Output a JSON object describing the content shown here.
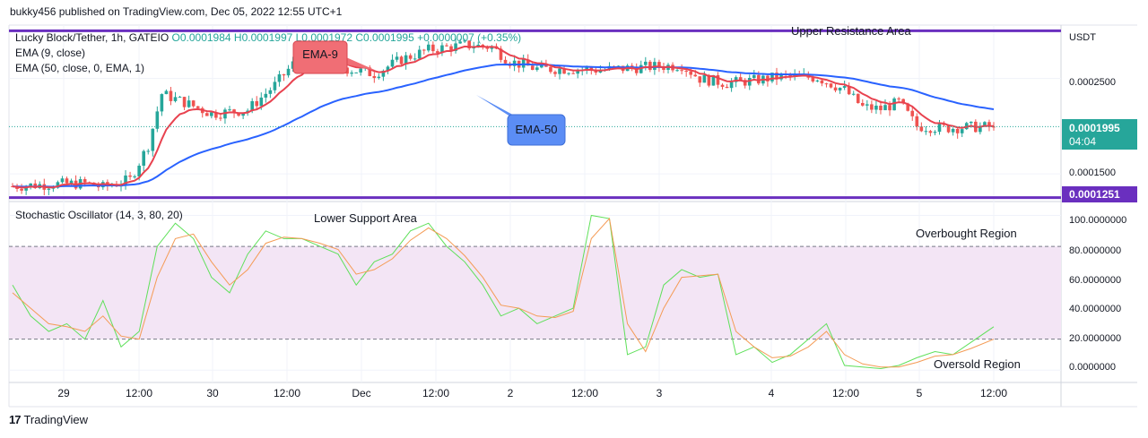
{
  "header": "bukky456 published on TradingView.com, Dec 05, 2022 12:55 UTC+1",
  "footer": {
    "logo": "17",
    "brand": "TradingView"
  },
  "symbol_line": {
    "prefix": "Lucky Block/Tether, 1h, GATEIO ",
    "ohlc": "O0.0001984  H0.0001997  L0.0001972  C0.0001995  +0.0000007 (+0.35%)"
  },
  "legend": {
    "ema9": "EMA (9, close)",
    "ema50": "EMA (50, close, 0, EMA, 1)",
    "stoch": "Stochastic Oscillator (14, 3, 80, 20)"
  },
  "annotations": {
    "upper_resistance": "Upper Resistance Area",
    "lower_support": "Lower Support Area",
    "ema9_callout": "EMA-9",
    "ema50_callout": "EMA-50",
    "overbought": "Overbought Region",
    "oversold": "Oversold Region"
  },
  "price_axis": {
    "currency": "USDT",
    "ticks": [
      "0.0002500",
      "0.0001500"
    ],
    "current_price": "0.0001995",
    "countdown": "04:04",
    "support_price": "0.0001251"
  },
  "stoch_axis": {
    "ticks": [
      "100.0000000",
      "80.0000000",
      "60.0000000",
      "40.0000000",
      "20.0000000",
      "0.0000000"
    ]
  },
  "time_axis": [
    "29",
    "12:00",
    "30",
    "12:00",
    "Dec",
    "12:00",
    "2",
    "12:00",
    "3",
    "4",
    "12:00",
    "5",
    "12:00"
  ],
  "colors": {
    "bull": "#26a69a",
    "bear": "#ef5350",
    "ema9": "#e8424f",
    "ema50": "#2962ff",
    "level_line": "#6a2fbf",
    "oscillator_band": "#f3e5f5",
    "k_line": "#5fe05a",
    "d_line": "#f49b55",
    "ema9_callout": "#f06e75",
    "ema50_callout": "#5b8df5",
    "price_label": "#26a69a"
  },
  "chart_data": [
    {
      "type": "candlestick",
      "title": "Lucky Block/Tether, 1h, GATEIO",
      "ylim": [
        0.000121,
        0.000306
      ],
      "x_labels": [
        "29",
        "12:00",
        "30",
        "12:00",
        "Dec",
        "12:00",
        "2",
        "12:00",
        "3",
        "4",
        "12:00",
        "5",
        "12:00"
      ],
      "levels": [
        {
          "name": "Upper Resistance Area",
          "value": 0.0003
        },
        {
          "name": "Lower Support Area",
          "value": 0.0001251
        }
      ],
      "anchors": [
        {
          "i": 0,
          "p": 0.000137
        },
        {
          "i": 8,
          "p": 0.000139
        },
        {
          "i": 16,
          "p": 0.00014
        },
        {
          "i": 20,
          "p": 0.000136
        },
        {
          "i": 26,
          "p": 0.000144
        },
        {
          "i": 30,
          "p": 0.00018
        },
        {
          "i": 33,
          "p": 0.000234
        },
        {
          "i": 38,
          "p": 0.000225
        },
        {
          "i": 44,
          "p": 0.000213
        },
        {
          "i": 52,
          "p": 0.000217
        },
        {
          "i": 58,
          "p": 0.000243
        },
        {
          "i": 62,
          "p": 0.000265
        },
        {
          "i": 68,
          "p": 0.000275
        },
        {
          "i": 74,
          "p": 0.00026
        },
        {
          "i": 80,
          "p": 0.000255
        },
        {
          "i": 86,
          "p": 0.00027
        },
        {
          "i": 92,
          "p": 0.00028
        },
        {
          "i": 100,
          "p": 0.000285
        },
        {
          "i": 106,
          "p": 0.000283
        },
        {
          "i": 110,
          "p": 0.000268
        },
        {
          "i": 116,
          "p": 0.00026
        },
        {
          "i": 122,
          "p": 0.00026
        },
        {
          "i": 130,
          "p": 0.000259
        },
        {
          "i": 140,
          "p": 0.000262
        },
        {
          "i": 148,
          "p": 0.000264
        },
        {
          "i": 152,
          "p": 0.00025
        },
        {
          "i": 158,
          "p": 0.000245
        },
        {
          "i": 164,
          "p": 0.000248
        },
        {
          "i": 170,
          "p": 0.000252
        },
        {
          "i": 178,
          "p": 0.000251
        },
        {
          "i": 184,
          "p": 0.000238
        },
        {
          "i": 188,
          "p": 0.00022
        },
        {
          "i": 192,
          "p": 0.000218
        },
        {
          "i": 196,
          "p": 0.000225
        },
        {
          "i": 200,
          "p": 0.0002
        },
        {
          "i": 206,
          "p": 0.000198
        },
        {
          "i": 212,
          "p": 0.000199
        },
        {
          "i": 217,
          "p": 0.0001995
        }
      ],
      "candle_count": 218
    },
    {
      "type": "line",
      "title": "Stochastic Oscillator (14, 3, 80, 20)",
      "ylim": [
        -8,
        109
      ],
      "bands": [
        20,
        80
      ],
      "series": [
        {
          "name": "%K",
          "x": [
            0,
            4,
            8,
            12,
            16,
            20,
            24,
            28,
            32,
            36,
            40,
            44,
            48,
            52,
            56,
            60,
            64,
            68,
            72,
            76,
            80,
            84,
            88,
            92,
            96,
            100,
            104,
            108,
            112,
            116,
            120,
            124,
            128,
            132,
            136,
            140,
            144,
            148,
            152,
            156,
            160,
            164,
            168,
            172,
            176,
            180,
            184,
            188,
            192,
            196,
            200,
            204,
            208,
            212,
            217
          ],
          "values": [
            55,
            35,
            25,
            30,
            20,
            45,
            15,
            25,
            80,
            95,
            85,
            60,
            50,
            75,
            90,
            85,
            85,
            80,
            75,
            55,
            70,
            75,
            90,
            95,
            80,
            70,
            55,
            35,
            40,
            30,
            35,
            40,
            100,
            98,
            10,
            15,
            55,
            65,
            60,
            62,
            10,
            15,
            5,
            10,
            20,
            30,
            3,
            2,
            1,
            3,
            8,
            12,
            10,
            18,
            28
          ]
        },
        {
          "name": "%D",
          "x": [
            0,
            4,
            8,
            12,
            16,
            20,
            24,
            28,
            32,
            36,
            40,
            44,
            48,
            52,
            56,
            60,
            64,
            68,
            72,
            76,
            80,
            84,
            88,
            92,
            96,
            100,
            104,
            108,
            112,
            116,
            120,
            124,
            128,
            132,
            136,
            140,
            144,
            148,
            152,
            156,
            160,
            164,
            168,
            172,
            176,
            180,
            184,
            188,
            192,
            196,
            200,
            204,
            208,
            212,
            217
          ],
          "values": [
            50,
            40,
            30,
            28,
            25,
            35,
            22,
            20,
            60,
            85,
            88,
            70,
            55,
            65,
            82,
            86,
            85,
            82,
            78,
            62,
            65,
            72,
            84,
            92,
            85,
            74,
            60,
            42,
            40,
            35,
            34,
            38,
            85,
            98,
            30,
            12,
            40,
            60,
            61,
            62,
            25,
            15,
            8,
            9,
            15,
            25,
            10,
            4,
            2,
            2,
            5,
            9,
            10,
            14,
            20
          ]
        }
      ]
    }
  ]
}
